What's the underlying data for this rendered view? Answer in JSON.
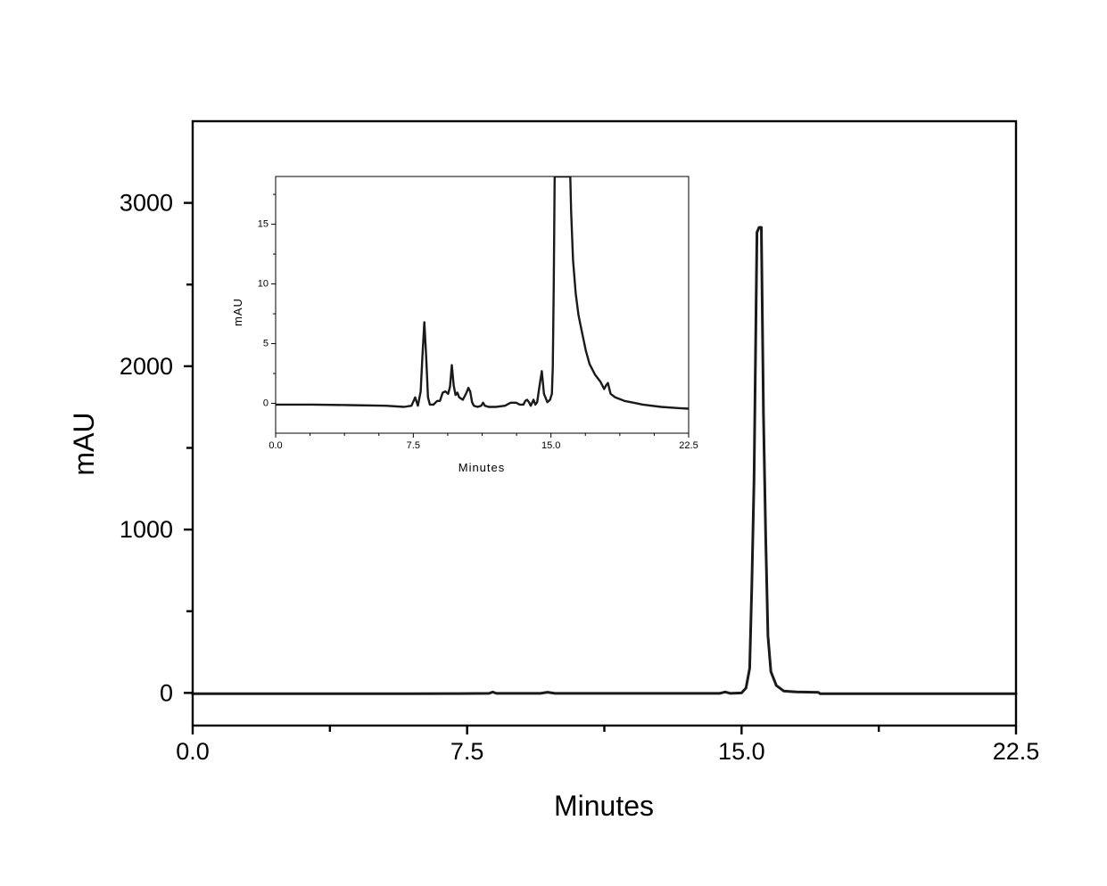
{
  "chart_data": [
    {
      "type": "line",
      "title": "",
      "xlabel": "Minutes",
      "ylabel": "mAU",
      "xlim": [
        0,
        22.5
      ],
      "ylim": [
        -200,
        3500
      ],
      "xticks": [
        0,
        7.5,
        15,
        22.5
      ],
      "xtick_labels": [
        "0.0",
        "7.5",
        "15.0",
        "22.5"
      ],
      "xminor_ticks": [
        3.75,
        11.25,
        18.75
      ],
      "yticks": [
        0,
        1000,
        2000,
        3000
      ],
      "ytick_labels": [
        "0",
        "1000",
        "2000",
        "3000"
      ],
      "yminor_ticks": [
        500,
        1500,
        2500
      ],
      "grid": false,
      "legend": "none",
      "line_color": "#1a1a1a",
      "series": [
        {
          "x": [
            0,
            3,
            6,
            7.3,
            8.1,
            8.2,
            8.3,
            9.5,
            9.7,
            9.9,
            11,
            13,
            14.4,
            14.55,
            14.7,
            15.0,
            15.12,
            15.22,
            15.28,
            15.34,
            15.42,
            15.48,
            15.54,
            15.6,
            15.66,
            15.72,
            15.8,
            15.95,
            16.15,
            16.5,
            17.1,
            17.15,
            18,
            20,
            22.5
          ],
          "y": [
            -5,
            -5,
            -5,
            -4,
            -3,
            5,
            -3,
            -3,
            4,
            -3,
            -3,
            -3,
            -3,
            6,
            -3,
            0,
            30,
            150,
            650,
            1300,
            2820,
            2850,
            2850,
            1700,
            950,
            350,
            130,
            45,
            12,
            6,
            3,
            -5,
            -5,
            -5,
            -5
          ]
        }
      ]
    },
    {
      "type": "line",
      "title": "",
      "xlabel": "Minutes",
      "ylabel": "mAU",
      "xlim": [
        0,
        22.5
      ],
      "ylim": [
        -2.5,
        19
      ],
      "xticks": [
        0,
        7.5,
        15,
        22.5
      ],
      "xtick_labels": [
        "0.0",
        "7.5",
        "15.0",
        "22.5"
      ],
      "xminor_ticks": [
        1.875,
        3.75,
        5.625,
        9.375,
        11.25,
        13.125,
        16.875,
        18.75,
        20.625
      ],
      "yticks": [
        0,
        5,
        10,
        15
      ],
      "ytick_labels": [
        "0",
        "5",
        "10",
        "15"
      ],
      "yminor_ticks": [
        2.5,
        7.5,
        12.5,
        17.5
      ],
      "grid": false,
      "legend": "none",
      "line_color": "#1a1a1a",
      "series": [
        {
          "x": [
            0,
            2,
            4,
            6,
            7.0,
            7.4,
            7.6,
            7.75,
            7.9,
            8.0,
            8.1,
            8.2,
            8.3,
            8.4,
            8.6,
            8.8,
            8.95,
            9.1,
            9.25,
            9.4,
            9.5,
            9.6,
            9.7,
            9.8,
            9.9,
            10.0,
            10.2,
            10.4,
            10.5,
            10.6,
            10.7,
            10.8,
            11.0,
            11.2,
            11.3,
            11.4,
            11.6,
            12.0,
            12.5,
            12.8,
            13.1,
            13.3,
            13.5,
            13.6,
            13.7,
            13.8,
            13.9,
            14.05,
            14.15,
            14.25,
            14.38,
            14.5,
            14.62,
            14.8,
            14.95,
            15.05,
            15.1,
            15.15,
            15.2,
            16.05,
            16.1,
            16.2,
            16.35,
            16.5,
            16.7,
            16.9,
            17.1,
            17.4,
            17.7,
            17.9,
            18.0,
            18.1,
            18.25,
            18.5,
            19.0,
            19.5,
            20.0,
            21.0,
            22.0,
            22.5
          ],
          "y": [
            -0.1,
            -0.1,
            -0.15,
            -0.2,
            -0.3,
            -0.2,
            0.5,
            -0.2,
            1.0,
            4.0,
            6.8,
            4.0,
            0.5,
            -0.1,
            -0.1,
            0.2,
            0.2,
            0.9,
            1.0,
            0.8,
            1.4,
            3.2,
            1.5,
            0.7,
            0.9,
            0.5,
            0.3,
            0.9,
            1.3,
            1.0,
            0.1,
            -0.2,
            -0.3,
            -0.2,
            0.05,
            -0.2,
            -0.3,
            -0.3,
            -0.2,
            0.05,
            0.05,
            -0.1,
            -0.1,
            0.2,
            0.3,
            0.1,
            -0.2,
            0.3,
            -0.1,
            0.1,
            1.5,
            2.7,
            0.8,
            0.1,
            0.3,
            0.8,
            3.0,
            10.0,
            19.0,
            19.0,
            16.0,
            12.0,
            9.2,
            7.4,
            5.9,
            4.4,
            3.3,
            2.4,
            1.8,
            1.2,
            1.5,
            1.7,
            0.8,
            0.5,
            0.2,
            0.05,
            -0.1,
            -0.3,
            -0.4,
            -0.45
          ]
        }
      ]
    }
  ]
}
